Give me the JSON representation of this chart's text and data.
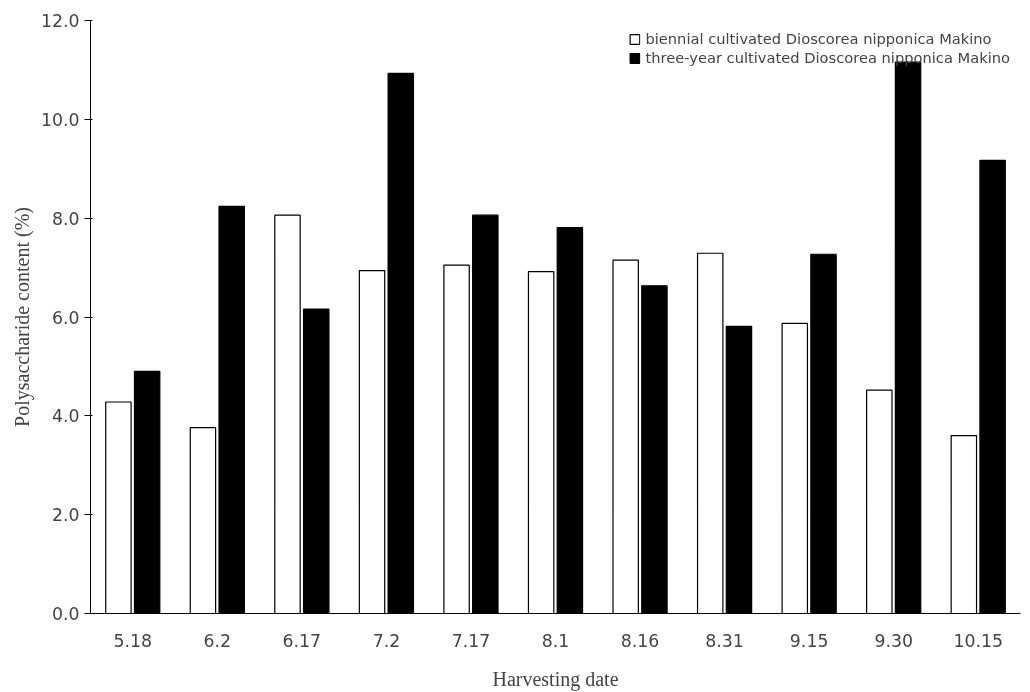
{
  "chart_data": {
    "type": "bar",
    "xlabel": "Harvesting date",
    "ylabel": "Polysaccharide content (%)",
    "categories": [
      "5.18",
      "6.2",
      "6.17",
      "7.2",
      "7.17",
      "8.1",
      "8.16",
      "8.31",
      "9.15",
      "9.30",
      "10.15"
    ],
    "series": [
      {
        "name": "biennial cultivated Dioscorea nipponica Makino",
        "color": "#ffffff",
        "values": [
          4.28,
          3.76,
          8.06,
          6.94,
          7.05,
          6.92,
          7.15,
          7.29,
          5.87,
          4.52,
          3.6
        ]
      },
      {
        "name": "three-year cultivated Dioscorea nipponica Makino",
        "color": "#000000",
        "values": [
          4.9,
          8.24,
          6.16,
          10.93,
          8.06,
          7.81,
          6.63,
          5.81,
          7.27,
          11.16,
          9.17
        ]
      }
    ],
    "ylim": [
      0,
      12
    ],
    "yticks": [
      {
        "value": 0,
        "label": "0.0"
      },
      {
        "value": 2,
        "label": "2.0"
      },
      {
        "value": 4,
        "label": "4.0"
      },
      {
        "value": 6,
        "label": "6.0"
      },
      {
        "value": 8,
        "label": "8.0"
      },
      {
        "value": 10,
        "label": "10.0"
      },
      {
        "value": 12,
        "label": "12.0"
      }
    ],
    "grid": false,
    "legend": "top right"
  }
}
